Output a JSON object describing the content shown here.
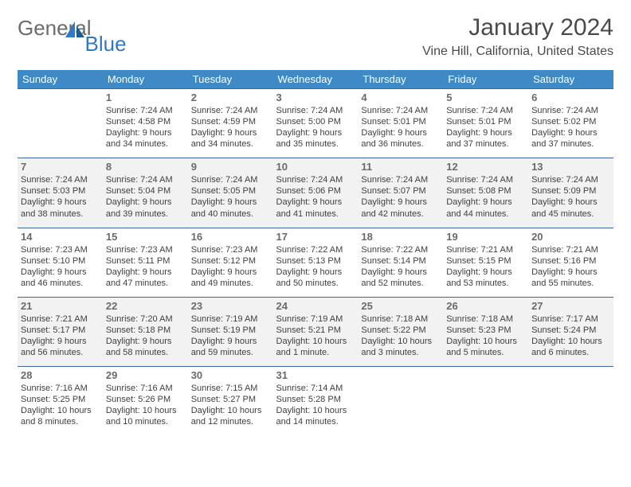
{
  "logo": {
    "part1": "General",
    "part2": "Blue"
  },
  "title": "January 2024",
  "location": "Vine Hill, California, United States",
  "colors": {
    "header_bg": "#3d8ac7",
    "header_text": "#ffffff",
    "row_border": "#3d6a9a",
    "alt_row_bg": "#f2f2f2",
    "daynum_color": "#6a6a6a",
    "text_color": "#3f3f3f",
    "logo_gray": "#6b6b6b",
    "logo_blue": "#2f7ac0"
  },
  "day_names": [
    "Sunday",
    "Monday",
    "Tuesday",
    "Wednesday",
    "Thursday",
    "Friday",
    "Saturday"
  ],
  "weeks": [
    [
      null,
      {
        "d": "1",
        "l1": "Sunrise: 7:24 AM",
        "l2": "Sunset: 4:58 PM",
        "l3": "Daylight: 9 hours",
        "l4": "and 34 minutes."
      },
      {
        "d": "2",
        "l1": "Sunrise: 7:24 AM",
        "l2": "Sunset: 4:59 PM",
        "l3": "Daylight: 9 hours",
        "l4": "and 34 minutes."
      },
      {
        "d": "3",
        "l1": "Sunrise: 7:24 AM",
        "l2": "Sunset: 5:00 PM",
        "l3": "Daylight: 9 hours",
        "l4": "and 35 minutes."
      },
      {
        "d": "4",
        "l1": "Sunrise: 7:24 AM",
        "l2": "Sunset: 5:01 PM",
        "l3": "Daylight: 9 hours",
        "l4": "and 36 minutes."
      },
      {
        "d": "5",
        "l1": "Sunrise: 7:24 AM",
        "l2": "Sunset: 5:01 PM",
        "l3": "Daylight: 9 hours",
        "l4": "and 37 minutes."
      },
      {
        "d": "6",
        "l1": "Sunrise: 7:24 AM",
        "l2": "Sunset: 5:02 PM",
        "l3": "Daylight: 9 hours",
        "l4": "and 37 minutes."
      }
    ],
    [
      {
        "d": "7",
        "l1": "Sunrise: 7:24 AM",
        "l2": "Sunset: 5:03 PM",
        "l3": "Daylight: 9 hours",
        "l4": "and 38 minutes."
      },
      {
        "d": "8",
        "l1": "Sunrise: 7:24 AM",
        "l2": "Sunset: 5:04 PM",
        "l3": "Daylight: 9 hours",
        "l4": "and 39 minutes."
      },
      {
        "d": "9",
        "l1": "Sunrise: 7:24 AM",
        "l2": "Sunset: 5:05 PM",
        "l3": "Daylight: 9 hours",
        "l4": "and 40 minutes."
      },
      {
        "d": "10",
        "l1": "Sunrise: 7:24 AM",
        "l2": "Sunset: 5:06 PM",
        "l3": "Daylight: 9 hours",
        "l4": "and 41 minutes."
      },
      {
        "d": "11",
        "l1": "Sunrise: 7:24 AM",
        "l2": "Sunset: 5:07 PM",
        "l3": "Daylight: 9 hours",
        "l4": "and 42 minutes."
      },
      {
        "d": "12",
        "l1": "Sunrise: 7:24 AM",
        "l2": "Sunset: 5:08 PM",
        "l3": "Daylight: 9 hours",
        "l4": "and 44 minutes."
      },
      {
        "d": "13",
        "l1": "Sunrise: 7:24 AM",
        "l2": "Sunset: 5:09 PM",
        "l3": "Daylight: 9 hours",
        "l4": "and 45 minutes."
      }
    ],
    [
      {
        "d": "14",
        "l1": "Sunrise: 7:23 AM",
        "l2": "Sunset: 5:10 PM",
        "l3": "Daylight: 9 hours",
        "l4": "and 46 minutes."
      },
      {
        "d": "15",
        "l1": "Sunrise: 7:23 AM",
        "l2": "Sunset: 5:11 PM",
        "l3": "Daylight: 9 hours",
        "l4": "and 47 minutes."
      },
      {
        "d": "16",
        "l1": "Sunrise: 7:23 AM",
        "l2": "Sunset: 5:12 PM",
        "l3": "Daylight: 9 hours",
        "l4": "and 49 minutes."
      },
      {
        "d": "17",
        "l1": "Sunrise: 7:22 AM",
        "l2": "Sunset: 5:13 PM",
        "l3": "Daylight: 9 hours",
        "l4": "and 50 minutes."
      },
      {
        "d": "18",
        "l1": "Sunrise: 7:22 AM",
        "l2": "Sunset: 5:14 PM",
        "l3": "Daylight: 9 hours",
        "l4": "and 52 minutes."
      },
      {
        "d": "19",
        "l1": "Sunrise: 7:21 AM",
        "l2": "Sunset: 5:15 PM",
        "l3": "Daylight: 9 hours",
        "l4": "and 53 minutes."
      },
      {
        "d": "20",
        "l1": "Sunrise: 7:21 AM",
        "l2": "Sunset: 5:16 PM",
        "l3": "Daylight: 9 hours",
        "l4": "and 55 minutes."
      }
    ],
    [
      {
        "d": "21",
        "l1": "Sunrise: 7:21 AM",
        "l2": "Sunset: 5:17 PM",
        "l3": "Daylight: 9 hours",
        "l4": "and 56 minutes."
      },
      {
        "d": "22",
        "l1": "Sunrise: 7:20 AM",
        "l2": "Sunset: 5:18 PM",
        "l3": "Daylight: 9 hours",
        "l4": "and 58 minutes."
      },
      {
        "d": "23",
        "l1": "Sunrise: 7:19 AM",
        "l2": "Sunset: 5:19 PM",
        "l3": "Daylight: 9 hours",
        "l4": "and 59 minutes."
      },
      {
        "d": "24",
        "l1": "Sunrise: 7:19 AM",
        "l2": "Sunset: 5:21 PM",
        "l3": "Daylight: 10 hours",
        "l4": "and 1 minute."
      },
      {
        "d": "25",
        "l1": "Sunrise: 7:18 AM",
        "l2": "Sunset: 5:22 PM",
        "l3": "Daylight: 10 hours",
        "l4": "and 3 minutes."
      },
      {
        "d": "26",
        "l1": "Sunrise: 7:18 AM",
        "l2": "Sunset: 5:23 PM",
        "l3": "Daylight: 10 hours",
        "l4": "and 5 minutes."
      },
      {
        "d": "27",
        "l1": "Sunrise: 7:17 AM",
        "l2": "Sunset: 5:24 PM",
        "l3": "Daylight: 10 hours",
        "l4": "and 6 minutes."
      }
    ],
    [
      {
        "d": "28",
        "l1": "Sunrise: 7:16 AM",
        "l2": "Sunset: 5:25 PM",
        "l3": "Daylight: 10 hours",
        "l4": "and 8 minutes."
      },
      {
        "d": "29",
        "l1": "Sunrise: 7:16 AM",
        "l2": "Sunset: 5:26 PM",
        "l3": "Daylight: 10 hours",
        "l4": "and 10 minutes."
      },
      {
        "d": "30",
        "l1": "Sunrise: 7:15 AM",
        "l2": "Sunset: 5:27 PM",
        "l3": "Daylight: 10 hours",
        "l4": "and 12 minutes."
      },
      {
        "d": "31",
        "l1": "Sunrise: 7:14 AM",
        "l2": "Sunset: 5:28 PM",
        "l3": "Daylight: 10 hours",
        "l4": "and 14 minutes."
      },
      null,
      null,
      null
    ]
  ]
}
